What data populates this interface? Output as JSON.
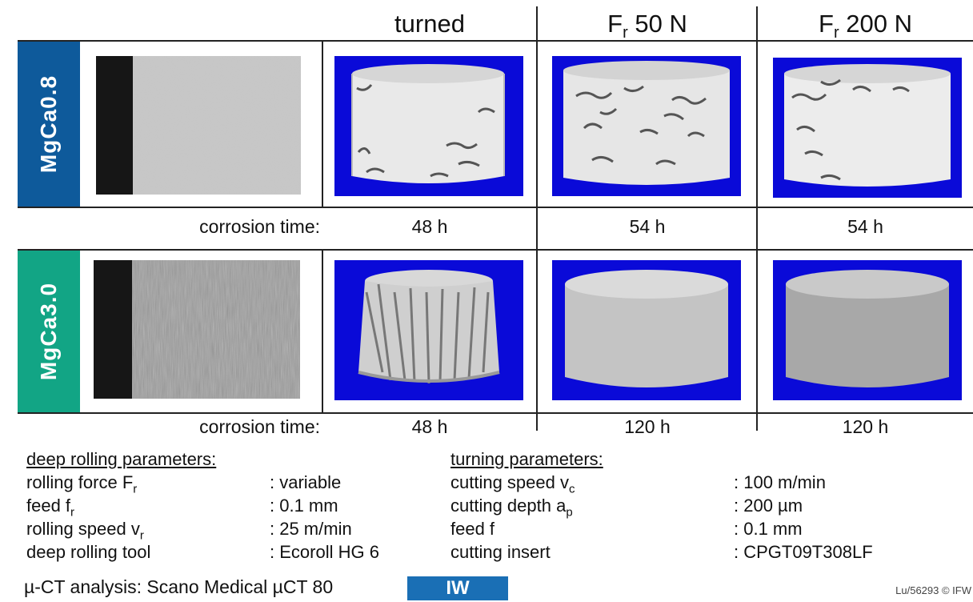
{
  "columns": {
    "turned": "turned",
    "f50": {
      "main": "F",
      "sub": "r",
      "rest": " 50 N"
    },
    "f200": {
      "main": "F",
      "sub": "r",
      "rest": " 200 N"
    }
  },
  "rows": [
    {
      "label": "MgCa0.8",
      "color": "#0e5a9b"
    },
    {
      "label": "MgCa3.0",
      "color": "#12a585"
    }
  ],
  "corrosion": {
    "label": "corrosion time:",
    "row1": [
      "48 h",
      "54 h",
      "54 h"
    ],
    "row2": [
      "48 h",
      "120 h",
      "120 h"
    ]
  },
  "ct_background": "#0a0ad8",
  "deep_rolling": {
    "title": "deep rolling parameters:",
    "items": [
      {
        "name": "rolling force F",
        "sub": "r",
        "value": ": variable"
      },
      {
        "name": "feed f",
        "sub": "r",
        "value": ": 0.1 mm"
      },
      {
        "name": "rolling speed v",
        "sub": "r",
        "value": ": 25 m/min"
      },
      {
        "name": "deep rolling tool",
        "sub": "",
        "value": ": Ecoroll HG 6"
      }
    ]
  },
  "turning": {
    "title": "turning parameters:",
    "items": [
      {
        "name": "cutting speed v",
        "sub": "c",
        "value": ": 100 m/min"
      },
      {
        "name": "cutting depth a",
        "sub": "p",
        "value": ": 200 µm"
      },
      {
        "name": "feed f",
        "sub": "",
        "value": ": 0.1 mm"
      },
      {
        "name": "cutting insert",
        "sub": "",
        "value": ": CPGT09T308LF"
      }
    ]
  },
  "footer": {
    "ct": "µ-CT analysis: Scano Medical µCT 80",
    "logo": "IW",
    "logo_color": "#1a6fb5",
    "ref": "Lu/56293 © IFW"
  }
}
